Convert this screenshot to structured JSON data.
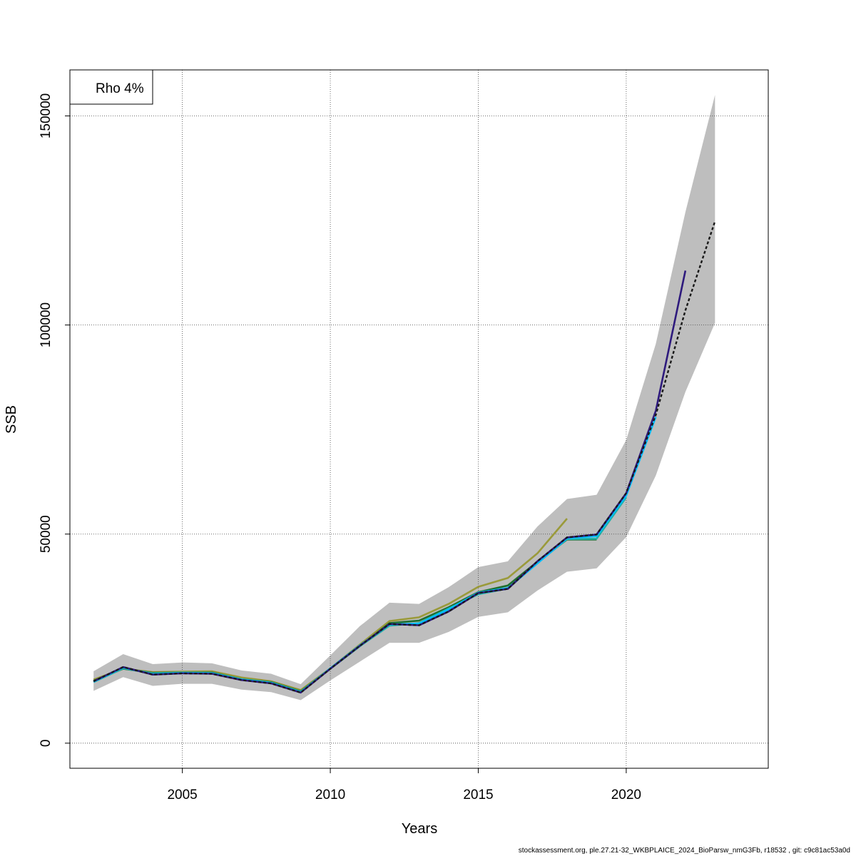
{
  "chart_data": {
    "type": "line",
    "title": "",
    "xlabel": "Years",
    "ylabel": "SSB",
    "xlim": [
      2001.2,
      2024.8
    ],
    "ylim": [
      -6000,
      161000
    ],
    "x_ticks": [
      2005,
      2010,
      2015,
      2020
    ],
    "y_ticks": [
      0,
      50000,
      100000,
      150000
    ],
    "grid": true,
    "legend": {
      "position": "top-left",
      "text": "Rho 4%"
    },
    "confidence_band": {
      "color": "#bebebe",
      "x": [
        2002,
        2003,
        2004,
        2005,
        2006,
        2007,
        2008,
        2009,
        2010,
        2011,
        2012,
        2013,
        2014,
        2015,
        2016,
        2017,
        2018,
        2019,
        2020,
        2021,
        2022,
        2023
      ],
      "lower": [
        12500,
        15800,
        13700,
        14200,
        14200,
        12800,
        12200,
        10300,
        15000,
        19500,
        24000,
        24000,
        26600,
        30200,
        31300,
        36500,
        41000,
        41800,
        49300,
        64000,
        84000,
        100500
      ],
      "upper": [
        17200,
        21300,
        18900,
        19300,
        19100,
        17400,
        16600,
        14100,
        21000,
        28000,
        33600,
        33300,
        37300,
        42100,
        43500,
        51800,
        58400,
        59400,
        72500,
        95500,
        127000,
        155000
      ]
    },
    "series": [
      {
        "color": "#191919",
        "dashed": true,
        "x": [
          2002,
          2003,
          2004,
          2005,
          2006,
          2007,
          2008,
          2009,
          2010,
          2011,
          2012,
          2013,
          2014,
          2015,
          2016,
          2017,
          2018,
          2019,
          2020,
          2021,
          2022,
          2023
        ],
        "values": [
          14800,
          18200,
          16400,
          16700,
          16600,
          15100,
          14300,
          12100,
          17800,
          23300,
          28500,
          28200,
          31500,
          35900,
          36900,
          43500,
          49200,
          49900,
          59800,
          78500,
          103500,
          124800
        ]
      },
      {
        "color": "#2e1a7d",
        "x": [
          2002,
          2003,
          2004,
          2005,
          2006,
          2007,
          2008,
          2009,
          2010,
          2011,
          2012,
          2013,
          2014,
          2015,
          2016,
          2017,
          2018,
          2019,
          2020,
          2021,
          2022
        ],
        "values": [
          14800,
          18200,
          16400,
          16700,
          16600,
          15100,
          14300,
          12100,
          17800,
          23300,
          28500,
          28200,
          31500,
          35900,
          36900,
          43500,
          49200,
          49900,
          59800,
          79500,
          113000
        ]
      },
      {
        "color": "#00bfff",
        "x": [
          2002,
          2003,
          2004,
          2005,
          2006,
          2007,
          2008,
          2009,
          2010,
          2011,
          2012,
          2013,
          2014,
          2015,
          2016,
          2017,
          2018,
          2019,
          2020,
          2021
        ],
        "values": [
          14700,
          18100,
          16500,
          16800,
          16700,
          15200,
          14400,
          12200,
          17900,
          23400,
          28400,
          28600,
          32000,
          36000,
          37100,
          43000,
          49000,
          49500,
          59200,
          78000
        ]
      },
      {
        "color": "#20b2aa",
        "x": [
          2002,
          2003,
          2004,
          2005,
          2006,
          2007,
          2008,
          2009,
          2010,
          2011,
          2012,
          2013,
          2014,
          2015,
          2016,
          2017,
          2018,
          2019,
          2020
        ],
        "values": [
          14600,
          17900,
          16700,
          16900,
          16800,
          15300,
          14500,
          12300,
          17800,
          23200,
          28100,
          28700,
          32200,
          35600,
          37000,
          43100,
          48800,
          48900,
          58800
        ]
      },
      {
        "color": "#1f6e2e",
        "x": [
          2002,
          2003,
          2004,
          2005,
          2006,
          2007,
          2008,
          2009,
          2010,
          2011,
          2012,
          2013,
          2014,
          2015,
          2016,
          2017,
          2018,
          2019
        ],
        "values": [
          14900,
          17800,
          16800,
          16900,
          16900,
          15300,
          14600,
          12400,
          17800,
          23200,
          28700,
          29300,
          32500,
          36100,
          37700,
          43400,
          48700,
          48700
        ]
      },
      {
        "color": "#9a9a3a",
        "x": [
          2002,
          2003,
          2004,
          2005,
          2006,
          2007,
          2008,
          2009,
          2010,
          2011,
          2012,
          2013,
          2014,
          2015,
          2016,
          2017,
          2018
        ],
        "values": [
          15200,
          17800,
          17000,
          17100,
          17200,
          15700,
          14800,
          12700,
          17900,
          23600,
          29200,
          30100,
          33300,
          37400,
          39500,
          45400,
          53700
        ]
      }
    ]
  },
  "footer": "stockassessment.org, ple.27.21-32_WKBPLAICE_2024_BioParsw_nmG3Fb, r18532 , git: c9c81ac53a0d"
}
